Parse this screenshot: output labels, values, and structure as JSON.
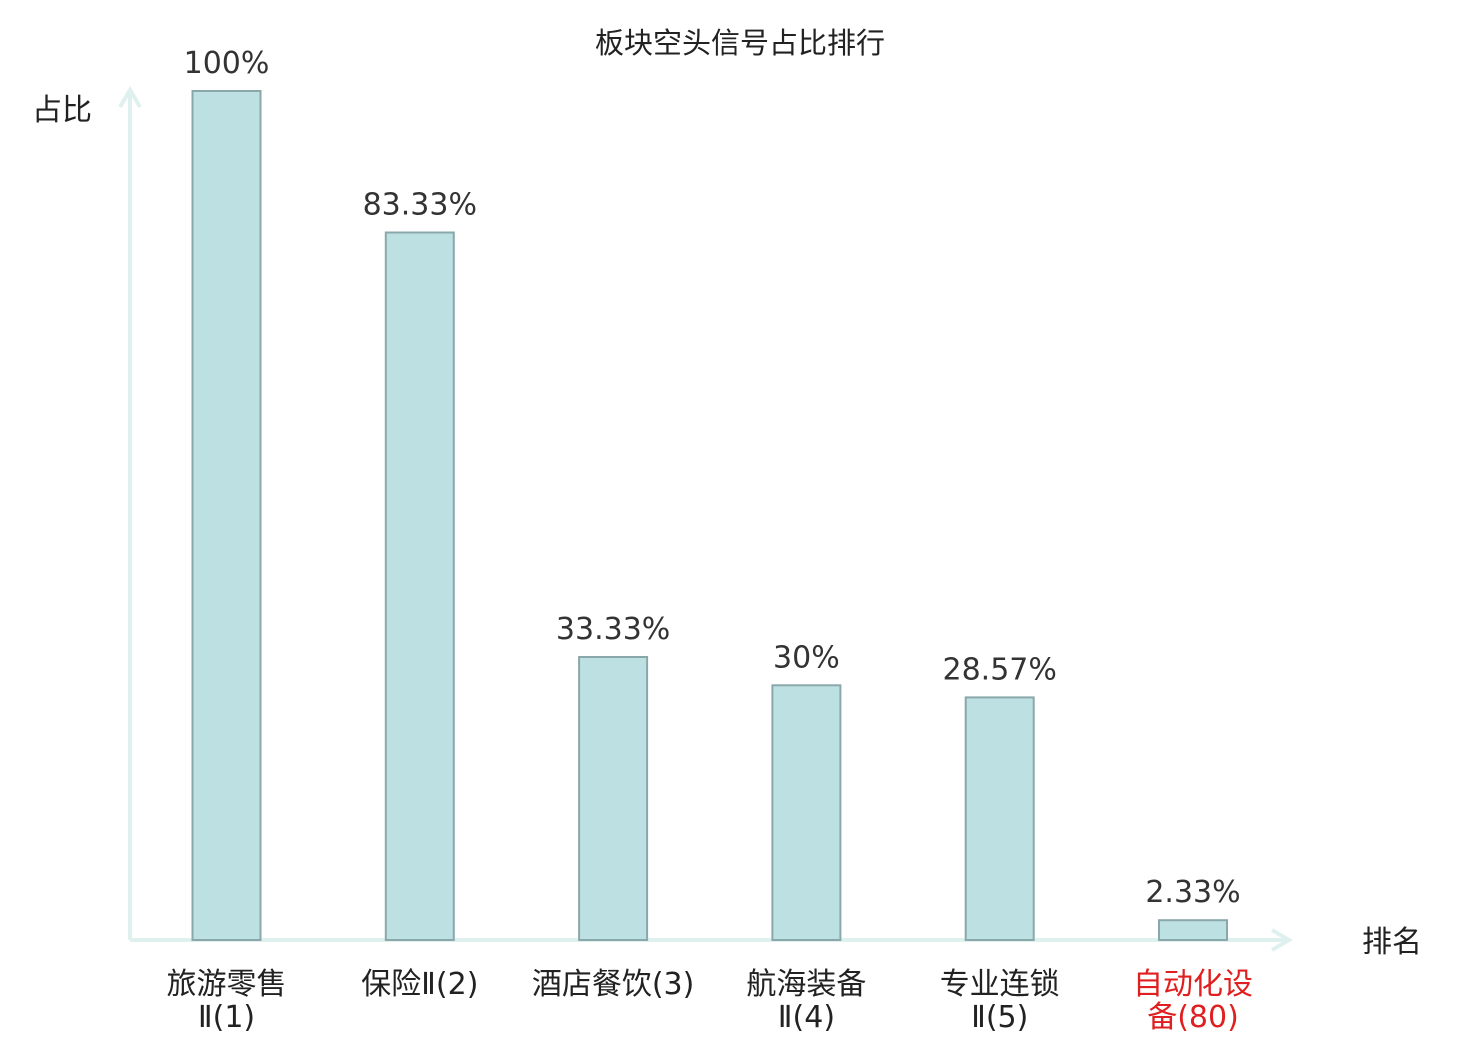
{
  "chart_data": {
    "type": "bar",
    "title": "板块空头信号占比排行",
    "ylabel": "占比",
    "xlabel": "排名",
    "ylim": [
      0,
      100
    ],
    "grid": false,
    "categories": [
      [
        "旅游零售",
        "Ⅱ(1)"
      ],
      [
        "保险Ⅱ(2)"
      ],
      [
        "酒店餐饮(3)"
      ],
      [
        "航海装备",
        "Ⅱ(4)"
      ],
      [
        "专业连锁",
        "Ⅱ(5)"
      ],
      [
        "自动化设",
        "备(80)"
      ]
    ],
    "values": [
      100,
      83.33,
      33.33,
      30,
      28.57,
      2.33
    ],
    "value_labels": [
      "100%",
      "83.33%",
      "33.33%",
      "30%",
      "28.57%",
      "2.33%"
    ],
    "highlighted_category_index": 5,
    "colors": {
      "bar_fill": "#bde0e3",
      "bar_stroke": "#8aa8aa",
      "axis": "#dff1ee",
      "label": "#222222",
      "highlight": "#e02020"
    }
  }
}
